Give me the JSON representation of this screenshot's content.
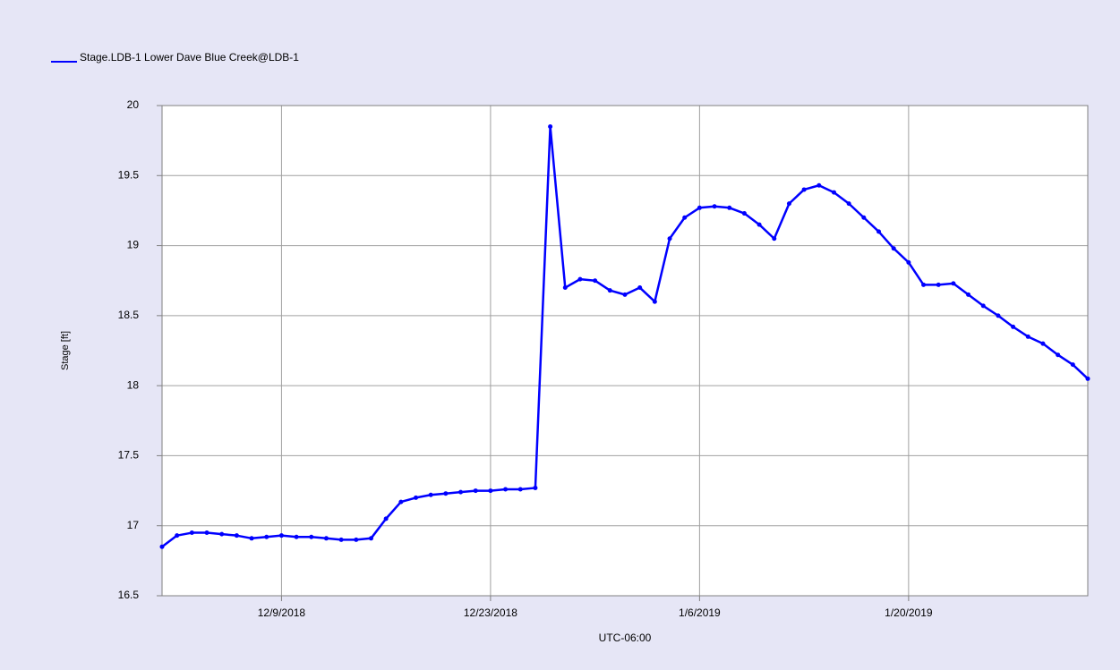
{
  "chart_data": {
    "type": "line",
    "x_label": "UTC-06:00",
    "y_label": "Stage [ft]",
    "x": [
      "2018-12-01",
      "2018-12-02",
      "2018-12-03",
      "2018-12-04",
      "2018-12-05",
      "2018-12-06",
      "2018-12-07",
      "2018-12-08",
      "2018-12-09",
      "2018-12-10",
      "2018-12-11",
      "2018-12-12",
      "2018-12-13",
      "2018-12-14",
      "2018-12-15",
      "2018-12-16",
      "2018-12-17",
      "2018-12-18",
      "2018-12-19",
      "2018-12-20",
      "2018-12-21",
      "2018-12-22",
      "2018-12-23",
      "2018-12-24",
      "2018-12-25",
      "2018-12-26",
      "2018-12-27",
      "2018-12-28",
      "2018-12-29",
      "2018-12-30",
      "2018-12-31",
      "2019-01-01",
      "2019-01-02",
      "2019-01-03",
      "2019-01-04",
      "2019-01-05",
      "2019-01-06",
      "2019-01-07",
      "2019-01-08",
      "2019-01-09",
      "2019-01-10",
      "2019-01-11",
      "2019-01-12",
      "2019-01-13",
      "2019-01-14",
      "2019-01-15",
      "2019-01-16",
      "2019-01-17",
      "2019-01-18",
      "2019-01-19",
      "2019-01-20",
      "2019-01-21",
      "2019-01-22",
      "2019-01-23",
      "2019-01-24",
      "2019-01-25",
      "2019-01-26",
      "2019-01-27",
      "2019-01-28",
      "2019-01-29",
      "2019-01-30",
      "2019-01-31",
      "2019-02-01"
    ],
    "series": [
      {
        "name": "Stage.LDB-1 Lower Dave Blue Creek@LDB-1",
        "color": "#0000ff",
        "values": [
          16.85,
          16.93,
          16.95,
          16.95,
          16.94,
          16.93,
          16.91,
          16.92,
          16.93,
          16.92,
          16.92,
          16.91,
          16.9,
          16.9,
          16.91,
          17.05,
          17.17,
          17.2,
          17.22,
          17.23,
          17.24,
          17.25,
          17.25,
          17.26,
          17.26,
          17.27,
          19.85,
          18.7,
          18.76,
          18.75,
          18.68,
          18.65,
          18.7,
          18.6,
          19.05,
          19.2,
          19.27,
          19.28,
          19.27,
          19.23,
          19.15,
          19.05,
          19.3,
          19.4,
          19.43,
          19.38,
          19.3,
          19.2,
          19.1,
          18.98,
          18.88,
          18.72,
          18.72,
          18.73,
          18.65,
          18.57,
          18.5,
          18.42,
          18.35,
          18.3,
          18.22,
          18.15,
          18.05
        ]
      }
    ],
    "xlim": [
      "2018-12-01",
      "2019-02-01"
    ],
    "xticks": [
      {
        "value": "2018-12-09",
        "label": "12/9/2018"
      },
      {
        "value": "2018-12-23",
        "label": "12/23/2018"
      },
      {
        "value": "2019-01-06",
        "label": "1/6/2019"
      },
      {
        "value": "2019-01-20",
        "label": "1/20/2019"
      }
    ],
    "ylim": [
      16.5,
      20
    ],
    "yticks": [
      16.5,
      17,
      17.5,
      18,
      18.5,
      19,
      19.5,
      20
    ],
    "grid": true,
    "legend": "top-left"
  }
}
